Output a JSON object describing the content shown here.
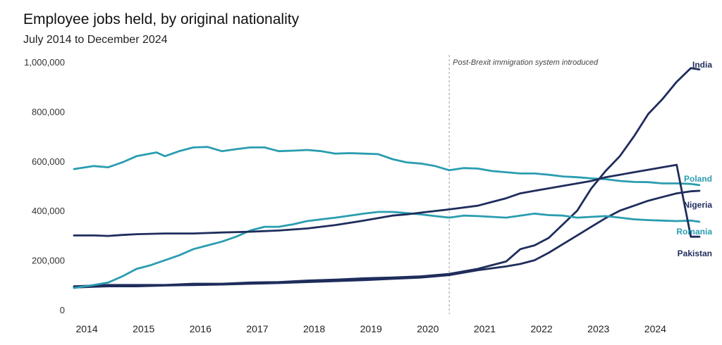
{
  "chart_data": {
    "type": "line",
    "title": "Employee jobs held, by original nationality",
    "subtitle": "July 2014 to December 2024",
    "xlabel": "",
    "ylabel": "",
    "xlim": [
      2013.9,
      2025.0
    ],
    "ylim": [
      0,
      1000000
    ],
    "y_ticks": [
      {
        "value": 0,
        "label": "0"
      },
      {
        "value": 200000,
        "label": "200,000"
      },
      {
        "value": 400000,
        "label": "400,000"
      },
      {
        "value": 600000,
        "label": "600,000"
      },
      {
        "value": 800000,
        "label": "800,000"
      },
      {
        "value": 1000000,
        "label": "1,000,000"
      }
    ],
    "x_ticks": [
      {
        "value": 2014,
        "label": "2014"
      },
      {
        "value": 2015,
        "label": "2015"
      },
      {
        "value": 2016,
        "label": "2016"
      },
      {
        "value": 2017,
        "label": "2017"
      },
      {
        "value": 2018,
        "label": "2018"
      },
      {
        "value": 2019,
        "label": "2019"
      },
      {
        "value": 2020,
        "label": "2020"
      },
      {
        "value": 2021,
        "label": "2021"
      },
      {
        "value": 2022,
        "label": "2022"
      },
      {
        "value": 2023,
        "label": "2023"
      },
      {
        "value": 2024,
        "label": "2024"
      }
    ],
    "annotation": {
      "x": 2020.5,
      "text": "Post-Brexit immigration system introduced"
    },
    "colors": {
      "dark": "#1f2d5c",
      "teal": "#2a9db0"
    },
    "series": [
      {
        "name": "India",
        "color": "#1f2d5c",
        "points": [
          [
            2013.9,
            95000
          ],
          [
            2014.5,
            100000
          ],
          [
            2015,
            100000
          ],
          [
            2015.5,
            100000
          ],
          [
            2016,
            105000
          ],
          [
            2016.5,
            105000
          ],
          [
            2017,
            110000
          ],
          [
            2017.5,
            112000
          ],
          [
            2018,
            118000
          ],
          [
            2018.5,
            122000
          ],
          [
            2019,
            127000
          ],
          [
            2019.5,
            130000
          ],
          [
            2020,
            135000
          ],
          [
            2020.5,
            145000
          ],
          [
            2021,
            165000
          ],
          [
            2021.5,
            195000
          ],
          [
            2021.75,
            245000
          ],
          [
            2022,
            260000
          ],
          [
            2022.25,
            290000
          ],
          [
            2022.5,
            345000
          ],
          [
            2022.75,
            400000
          ],
          [
            2023,
            490000
          ],
          [
            2023.25,
            560000
          ],
          [
            2023.5,
            620000
          ],
          [
            2023.75,
            700000
          ],
          [
            2024,
            790000
          ],
          [
            2024.25,
            850000
          ],
          [
            2024.5,
            920000
          ],
          [
            2024.75,
            975000
          ],
          [
            2024.9,
            970000
          ]
        ]
      },
      {
        "name": "Poland",
        "color": "#2a9db0",
        "points": [
          [
            2013.9,
            568000
          ],
          [
            2014.25,
            580000
          ],
          [
            2014.5,
            575000
          ],
          [
            2014.75,
            595000
          ],
          [
            2015,
            620000
          ],
          [
            2015.35,
            635000
          ],
          [
            2015.5,
            620000
          ],
          [
            2015.75,
            640000
          ],
          [
            2016,
            655000
          ],
          [
            2016.25,
            657000
          ],
          [
            2016.5,
            640000
          ],
          [
            2016.75,
            648000
          ],
          [
            2017,
            655000
          ],
          [
            2017.25,
            655000
          ],
          [
            2017.5,
            640000
          ],
          [
            2017.75,
            642000
          ],
          [
            2018,
            645000
          ],
          [
            2018.25,
            640000
          ],
          [
            2018.5,
            630000
          ],
          [
            2018.75,
            632000
          ],
          [
            2019,
            630000
          ],
          [
            2019.25,
            628000
          ],
          [
            2019.5,
            608000
          ],
          [
            2019.75,
            595000
          ],
          [
            2020,
            590000
          ],
          [
            2020.25,
            580000
          ],
          [
            2020.5,
            563000
          ],
          [
            2020.75,
            572000
          ],
          [
            2021,
            570000
          ],
          [
            2021.25,
            560000
          ],
          [
            2021.5,
            555000
          ],
          [
            2021.75,
            550000
          ],
          [
            2022,
            550000
          ],
          [
            2022.25,
            545000
          ],
          [
            2022.5,
            538000
          ],
          [
            2022.75,
            535000
          ],
          [
            2023,
            530000
          ],
          [
            2023.25,
            527000
          ],
          [
            2023.5,
            520000
          ],
          [
            2023.75,
            516000
          ],
          [
            2024,
            515000
          ],
          [
            2024.25,
            510000
          ],
          [
            2024.5,
            510000
          ],
          [
            2024.75,
            508000
          ],
          [
            2024.9,
            503000
          ]
        ]
      },
      {
        "name": "Nigeria",
        "color": "#1f2d5c",
        "points": [
          [
            2013.9,
            90000
          ],
          [
            2014.5,
            95000
          ],
          [
            2015,
            95000
          ],
          [
            2015.5,
            98000
          ],
          [
            2016,
            100000
          ],
          [
            2016.5,
            102000
          ],
          [
            2017,
            105000
          ],
          [
            2017.5,
            108000
          ],
          [
            2018,
            112000
          ],
          [
            2018.5,
            116000
          ],
          [
            2019,
            120000
          ],
          [
            2019.5,
            125000
          ],
          [
            2020,
            130000
          ],
          [
            2020.5,
            140000
          ],
          [
            2021,
            160000
          ],
          [
            2021.5,
            175000
          ],
          [
            2021.75,
            185000
          ],
          [
            2022,
            200000
          ],
          [
            2022.25,
            230000
          ],
          [
            2022.5,
            265000
          ],
          [
            2022.75,
            300000
          ],
          [
            2023,
            335000
          ],
          [
            2023.25,
            370000
          ],
          [
            2023.5,
            400000
          ],
          [
            2023.75,
            420000
          ],
          [
            2024,
            440000
          ],
          [
            2024.25,
            455000
          ],
          [
            2024.5,
            470000
          ],
          [
            2024.75,
            478000
          ],
          [
            2024.9,
            480000
          ]
        ]
      },
      {
        "name": "Romania",
        "color": "#2a9db0",
        "points": [
          [
            2013.9,
            88000
          ],
          [
            2014.25,
            100000
          ],
          [
            2014.5,
            110000
          ],
          [
            2014.75,
            135000
          ],
          [
            2015,
            165000
          ],
          [
            2015.25,
            180000
          ],
          [
            2015.5,
            200000
          ],
          [
            2015.75,
            220000
          ],
          [
            2016,
            245000
          ],
          [
            2016.25,
            260000
          ],
          [
            2016.5,
            275000
          ],
          [
            2016.75,
            295000
          ],
          [
            2017,
            320000
          ],
          [
            2017.25,
            335000
          ],
          [
            2017.5,
            335000
          ],
          [
            2017.75,
            345000
          ],
          [
            2018,
            358000
          ],
          [
            2018.25,
            365000
          ],
          [
            2018.5,
            372000
          ],
          [
            2018.75,
            380000
          ],
          [
            2019,
            388000
          ],
          [
            2019.25,
            395000
          ],
          [
            2019.5,
            395000
          ],
          [
            2019.75,
            390000
          ],
          [
            2020,
            385000
          ],
          [
            2020.25,
            378000
          ],
          [
            2020.5,
            372000
          ],
          [
            2020.75,
            380000
          ],
          [
            2021,
            378000
          ],
          [
            2021.25,
            375000
          ],
          [
            2021.5,
            372000
          ],
          [
            2021.75,
            380000
          ],
          [
            2022,
            388000
          ],
          [
            2022.25,
            382000
          ],
          [
            2022.5,
            380000
          ],
          [
            2022.75,
            372000
          ],
          [
            2023,
            375000
          ],
          [
            2023.25,
            378000
          ],
          [
            2023.5,
            372000
          ],
          [
            2023.75,
            365000
          ],
          [
            2024,
            362000
          ],
          [
            2024.25,
            360000
          ],
          [
            2024.5,
            358000
          ],
          [
            2024.75,
            360000
          ],
          [
            2024.9,
            355000
          ]
        ]
      },
      {
        "name": "Pakistan",
        "color": "#1f2d5c",
        "points": [
          [
            2013.9,
            300000
          ],
          [
            2014.25,
            300000
          ],
          [
            2014.5,
            298000
          ],
          [
            2014.75,
            302000
          ],
          [
            2015,
            305000
          ],
          [
            2015.5,
            308000
          ],
          [
            2016,
            308000
          ],
          [
            2016.5,
            312000
          ],
          [
            2017,
            315000
          ],
          [
            2017.5,
            320000
          ],
          [
            2018,
            328000
          ],
          [
            2018.5,
            342000
          ],
          [
            2019,
            360000
          ],
          [
            2019.5,
            380000
          ],
          [
            2019.75,
            385000
          ],
          [
            2020,
            392000
          ],
          [
            2020.5,
            405000
          ],
          [
            2021,
            420000
          ],
          [
            2021.25,
            435000
          ],
          [
            2021.5,
            450000
          ],
          [
            2021.75,
            470000
          ],
          [
            2022,
            480000
          ],
          [
            2022.25,
            490000
          ],
          [
            2022.5,
            500000
          ],
          [
            2022.75,
            510000
          ],
          [
            2023,
            520000
          ],
          [
            2023.25,
            535000
          ],
          [
            2023.5,
            545000
          ],
          [
            2023.75,
            555000
          ],
          [
            2024,
            565000
          ],
          [
            2024.25,
            575000
          ],
          [
            2024.5,
            585000
          ],
          [
            2024.75,
            295000
          ],
          [
            2024.9,
            295000
          ]
        ]
      }
    ]
  }
}
